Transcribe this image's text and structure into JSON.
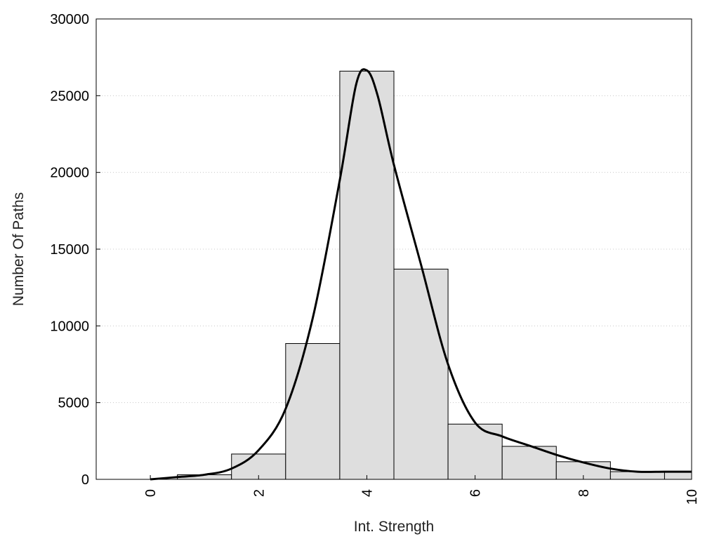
{
  "chart_data": {
    "type": "bar",
    "title": "",
    "xlabel": "Int. Strength",
    "ylabel": "Number Of Paths",
    "xlim": [
      -1,
      10
    ],
    "ylim": [
      0,
      30000
    ],
    "x_ticks": [
      0,
      2,
      4,
      6,
      8,
      10
    ],
    "x_tick_labels": [
      "0",
      "2",
      "4",
      "6",
      "8",
      "10"
    ],
    "y_ticks": [
      0,
      5000,
      10000,
      15000,
      20000,
      25000,
      30000
    ],
    "y_tick_labels": [
      "0",
      "5000",
      "10000",
      "15000",
      "20000",
      "25000",
      "30000"
    ],
    "grid": "horizontal dotted",
    "bar_width": 1,
    "bars": [
      {
        "x": 0,
        "value": 0
      },
      {
        "x": 1,
        "value": 300
      },
      {
        "x": 2,
        "value": 1650
      },
      {
        "x": 3,
        "value": 8850
      },
      {
        "x": 4,
        "value": 26600
      },
      {
        "x": 5,
        "value": 13700
      },
      {
        "x": 6,
        "value": 3600
      },
      {
        "x": 7,
        "value": 2150
      },
      {
        "x": 8,
        "value": 1150
      },
      {
        "x": 9,
        "value": 500
      },
      {
        "x": 10,
        "value": 500
      }
    ],
    "curve": {
      "x": [
        0,
        0.5,
        1,
        1.5,
        2,
        2.5,
        3,
        3.5,
        3.8,
        4,
        4.2,
        4.5,
        5,
        5.5,
        6,
        6.5,
        7,
        7.5,
        8,
        8.5,
        9,
        9.5,
        10
      ],
      "y": [
        0,
        150,
        300,
        700,
        1900,
        4600,
        10500,
        19500,
        25700,
        26650,
        25000,
        20500,
        14000,
        7500,
        3700,
        2800,
        2200,
        1600,
        1100,
        700,
        500,
        500,
        500
      ]
    },
    "colors": {
      "bar_fill": "#dedede",
      "bar_stroke": "#000000",
      "curve": "#000000",
      "grid": "#c8c8c8",
      "frame": "#000000"
    }
  }
}
